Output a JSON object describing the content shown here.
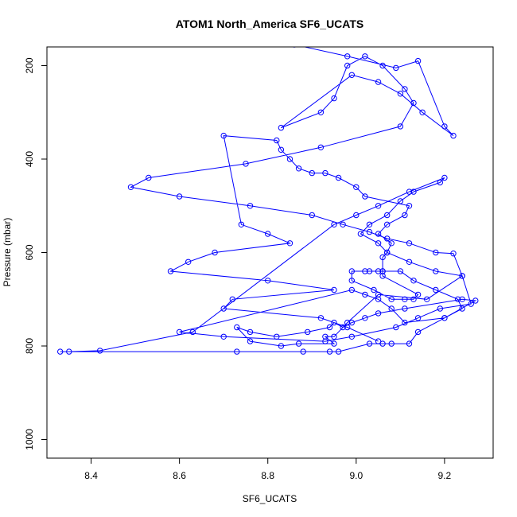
{
  "chart_data": {
    "type": "scatter",
    "title": "ATOM1 North_America SF6_UCATS",
    "xlabel": "SF6_UCATS",
    "ylabel": "Pressure (mbar)",
    "xlim": [
      8.3,
      9.31
    ],
    "ylim": [
      1040,
      160
    ],
    "y_reversed": true,
    "grid": false,
    "legend": "none",
    "x_ticks": [
      8.4,
      8.6,
      8.8,
      9.0,
      9.2
    ],
    "x_tick_labels": [
      "8.4",
      "8.6",
      "8.8",
      "9.0",
      "9.2"
    ],
    "y_ticks": [
      200,
      400,
      600,
      800,
      1000
    ],
    "y_tick_labels": [
      "200",
      "400",
      "600",
      "800",
      "1000"
    ],
    "series": [
      {
        "color": "#0000ff",
        "marker": "open-circle",
        "line": true,
        "x": [
          8.86,
          8.98,
          9.09,
          9.14,
          9.2,
          9.22,
          9.15,
          9.1,
          9.05,
          8.99,
          8.83,
          8.92,
          8.95,
          8.98,
          9.02,
          9.06,
          9.11,
          9.13,
          9.1,
          8.92,
          8.75,
          8.53,
          8.49,
          8.6,
          8.76,
          8.9,
          8.97,
          9.03,
          9.07,
          9.12,
          9.18,
          9.22,
          9.24,
          9.16,
          9.05,
          8.98,
          8.95,
          8.93,
          8.95,
          8.87,
          8.83,
          8.76,
          8.73,
          8.76,
          8.82,
          8.89,
          8.94,
          8.95,
          8.97,
          8.99,
          9.02,
          9.05,
          9.11,
          9.24,
          9.27,
          9.2,
          9.11,
          9.08,
          9.05,
          9.02,
          8.99,
          8.6,
          8.7,
          8.93,
          8.99,
          9.09,
          9.14,
          9.19,
          9.26,
          9.24,
          9.18,
          9.12,
          9.07,
          9.05,
          9.01,
          9.03,
          9.07,
          9.1,
          9.13,
          9.19,
          9.2,
          9.12,
          9.05,
          9.0,
          8.95,
          8.63,
          8.42,
          8.35,
          8.33,
          8.73,
          8.88,
          8.94,
          8.96,
          9.03,
          9.06,
          9.08,
          9.12,
          9.14,
          9.2,
          9.24,
          9.23,
          9.18,
          9.13,
          9.1,
          9.06,
          9.06,
          9.05,
          9.03,
          9.02,
          8.99,
          8.99,
          9.04,
          9.08,
          9.11,
          9.13,
          9.14,
          9.06,
          9.06,
          9.07,
          9.08,
          9.05,
          9.07,
          9.11,
          9.12,
          9.02,
          9.0,
          8.96,
          8.93,
          8.9,
          8.87,
          8.85,
          8.83,
          8.82,
          8.7,
          8.74,
          8.8,
          8.85,
          8.68,
          8.62,
          8.58,
          8.8,
          8.95,
          8.72,
          8.7,
          8.92,
          8.98,
          9.05
        ],
        "y": [
          155,
          180,
          205,
          190,
          330,
          350,
          300,
          260,
          235,
          220,
          333,
          300,
          270,
          200,
          180,
          200,
          250,
          280,
          330,
          375,
          410,
          440,
          460,
          480,
          500,
          520,
          540,
          556,
          570,
          580,
          600,
          602,
          650,
          700,
          690,
          750,
          780,
          780,
          795,
          795,
          800,
          790,
          760,
          770,
          780,
          770,
          760,
          750,
          760,
          750,
          740,
          730,
          720,
          700,
          703,
          740,
          750,
          720,
          700,
          690,
          680,
          770,
          780,
          790,
          780,
          760,
          740,
          720,
          710,
          650,
          640,
          620,
          600,
          580,
          560,
          540,
          520,
          490,
          470,
          450,
          440,
          470,
          500,
          520,
          540,
          770,
          810,
          812,
          812,
          812,
          812,
          812,
          812,
          795,
          795,
          795,
          795,
          770,
          740,
          720,
          700,
          680,
          660,
          640,
          640,
          640,
          640,
          640,
          640,
          640,
          660,
          680,
          700,
          700,
          700,
          690,
          650,
          610,
          600,
          580,
          560,
          540,
          520,
          500,
          480,
          460,
          440,
          430,
          430,
          420,
          400,
          380,
          360,
          350,
          540,
          560,
          580,
          600,
          620,
          640,
          660,
          680,
          700,
          720,
          740,
          760,
          790
        ]
      }
    ]
  }
}
